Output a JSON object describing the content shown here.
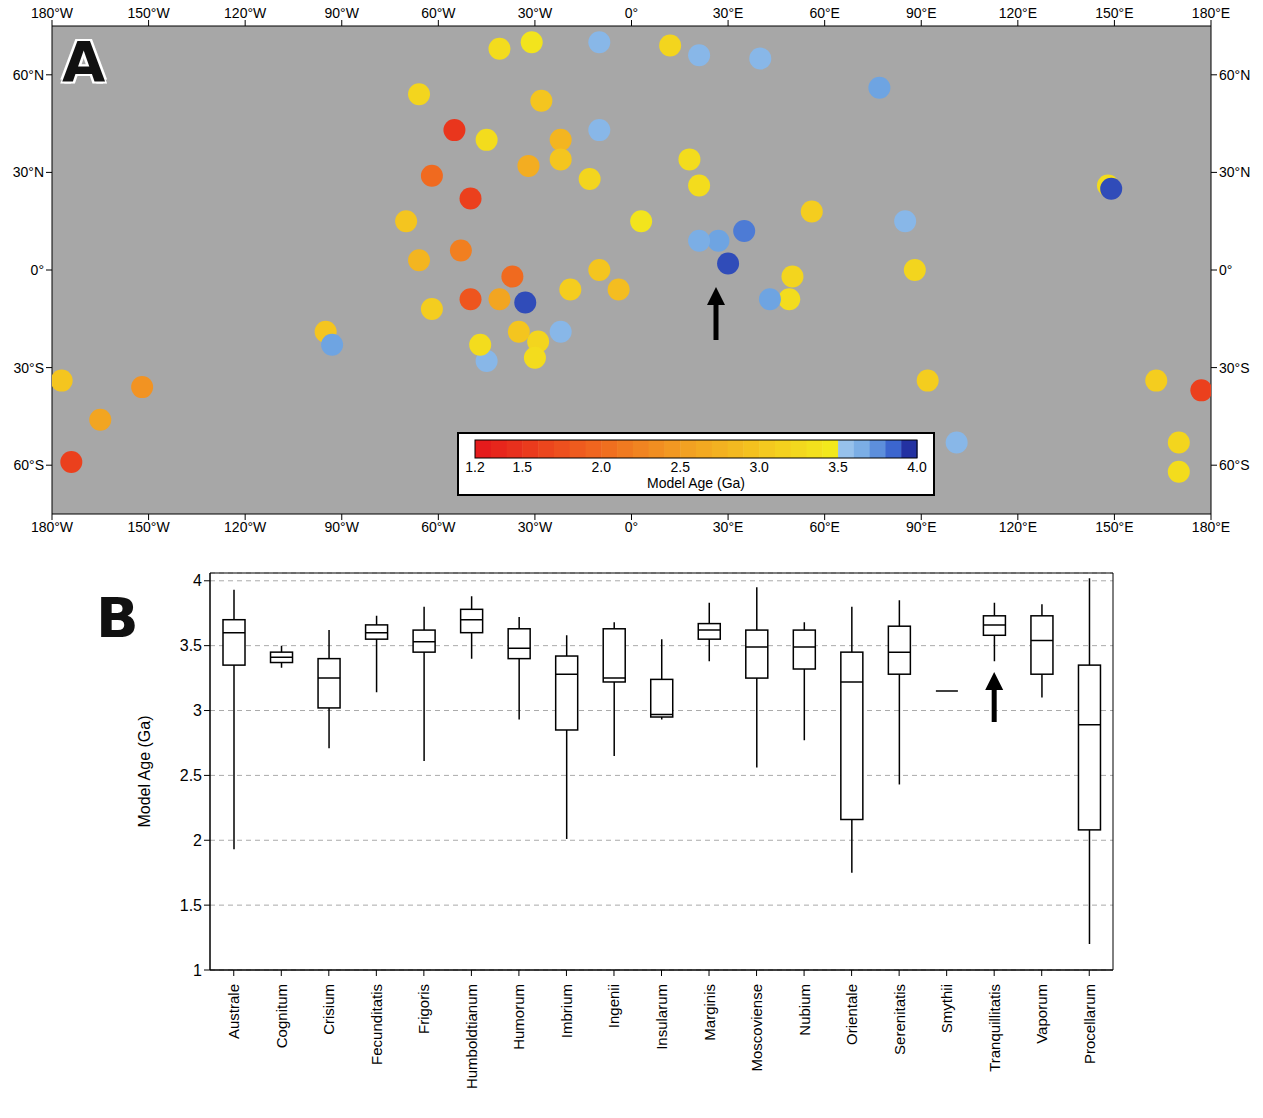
{
  "chart_data": [
    {
      "type": "scatter",
      "panel": "A",
      "xlim": [
        -180,
        180
      ],
      "ylim": [
        -75,
        75
      ],
      "xticks": [
        {
          "value": -180,
          "label": "180°W"
        },
        {
          "value": -150,
          "label": "150°W"
        },
        {
          "value": -120,
          "label": "120°W"
        },
        {
          "value": -90,
          "label": "90°W"
        },
        {
          "value": -60,
          "label": "60°W"
        },
        {
          "value": -30,
          "label": "30°W"
        },
        {
          "value": 0,
          "label": "0°"
        },
        {
          "value": 30,
          "label": "30°E"
        },
        {
          "value": 60,
          "label": "60°E"
        },
        {
          "value": 90,
          "label": "90°E"
        },
        {
          "value": 120,
          "label": "120°E"
        },
        {
          "value": 150,
          "label": "150°E"
        },
        {
          "value": 180,
          "label": "180°E"
        }
      ],
      "yticks": [
        {
          "value": -60,
          "label": "60°S"
        },
        {
          "value": -30,
          "label": "30°S"
        },
        {
          "value": 0,
          "label": "0°"
        },
        {
          "value": 30,
          "label": "30°N"
        },
        {
          "value": 60,
          "label": "60°N"
        }
      ],
      "grid": false,
      "x": [
        -55,
        -62,
        -50,
        -66,
        -70,
        -66,
        -53,
        -50,
        -62,
        -41,
        -37,
        -13,
        -22,
        -28,
        -10,
        -41,
        -31,
        -10,
        12,
        21,
        40,
        21,
        18,
        27,
        35,
        21,
        30,
        56,
        50,
        49,
        43,
        -22,
        -29,
        -35,
        -10,
        -4,
        3,
        -95,
        -93,
        88,
        77,
        85,
        148,
        149,
        163,
        170,
        177,
        101,
        92,
        -177,
        -165,
        -174,
        -152,
        -45,
        -47,
        -19,
        -30,
        -22,
        -32,
        -45,
        170,
        -33
      ],
      "y": [
        43,
        29,
        22,
        54,
        15,
        3,
        6,
        -9,
        -12,
        -9,
        -2,
        28,
        40,
        52,
        43,
        68,
        70,
        70,
        69,
        66,
        65,
        26,
        34,
        9,
        12,
        9,
        2,
        18,
        -2,
        -9,
        -9,
        -19,
        -22,
        -19,
        0,
        -6,
        15,
        -19,
        -23,
        0,
        56,
        15,
        26,
        25,
        -34,
        -53,
        -37,
        -53,
        -34,
        -34,
        -46,
        -59,
        -36,
        -28,
        -23,
        -6,
        -27,
        34,
        32,
        40,
        -62,
        -10
      ],
      "values": [
        1.5,
        2.0,
        1.6,
        3.2,
        3.0,
        2.8,
        2.2,
        1.8,
        3.1,
        2.6,
        2.0,
        3.2,
        2.8,
        3.0,
        3.6,
        3.3,
        3.4,
        3.6,
        3.2,
        3.6,
        3.6,
        3.3,
        3.3,
        3.7,
        3.8,
        3.65,
        3.9,
        3.1,
        3.2,
        3.3,
        3.7,
        3.6,
        3.2,
        3.0,
        3.0,
        2.9,
        3.4,
        3.0,
        3.7,
        3.2,
        3.7,
        3.6,
        3.3,
        3.9,
        3.1,
        3.2,
        1.6,
        3.6,
        3.1,
        3.0,
        2.6,
        1.6,
        2.4,
        3.6,
        3.3,
        3.1,
        3.3,
        3.0,
        2.7,
        3.3,
        3.3,
        3.9
      ],
      "colorbar": {
        "range": [
          1.2,
          4.0
        ],
        "ticks": [
          1.2,
          1.5,
          {
            "value": 2,
            "label": "2.0"
          },
          2.5,
          {
            "value": 3,
            "label": "3.0"
          },
          3.5,
          {
            "value": 4,
            "label": "4.0"
          }
        ],
        "label": "Model Age (Ga)"
      }
    },
    {
      "type": "box",
      "panel": "B",
      "categories": [
        "Australe",
        "Cognitum",
        "Crisium",
        "Fecunditatis",
        "Frigoris",
        "Humboldtianum",
        "Humorum",
        "Imbrium",
        "Ingenii",
        "Insularum",
        "Marginis",
        "Moscoviense",
        "Nubium",
        "Orientale",
        "Serenitatis",
        "Smythii",
        "Tranquillitatis",
        "Vaporum",
        "Procellarum"
      ],
      "min": [
        1.93,
        3.33,
        2.71,
        3.14,
        2.61,
        3.4,
        2.93,
        2.01,
        2.65,
        2.93,
        3.38,
        2.56,
        2.77,
        1.75,
        2.43,
        3.15,
        3.38,
        3.1,
        1.2
      ],
      "q1": [
        3.35,
        3.37,
        3.02,
        3.55,
        3.45,
        3.6,
        3.4,
        2.85,
        3.22,
        2.95,
        3.55,
        3.25,
        3.32,
        2.16,
        3.28,
        3.15,
        3.58,
        3.28,
        2.08
      ],
      "median": [
        3.6,
        3.41,
        3.25,
        3.6,
        3.53,
        3.7,
        3.48,
        3.28,
        3.25,
        2.97,
        3.62,
        3.49,
        3.49,
        3.22,
        3.45,
        3.15,
        3.66,
        3.54,
        2.89
      ],
      "q3": [
        3.7,
        3.45,
        3.4,
        3.66,
        3.62,
        3.78,
        3.63,
        3.42,
        3.63,
        3.24,
        3.67,
        3.62,
        3.62,
        3.45,
        3.65,
        3.15,
        3.73,
        3.73,
        3.35
      ],
      "max": [
        3.93,
        3.5,
        3.62,
        3.73,
        3.8,
        3.88,
        3.72,
        3.58,
        3.68,
        3.55,
        3.83,
        3.95,
        3.68,
        3.8,
        3.85,
        3.15,
        3.83,
        3.82,
        4.02
      ],
      "ylabel": "Model Age (Ga)",
      "ylim": [
        1,
        4.06
      ],
      "yticks": [
        1,
        1.5,
        2,
        2.5,
        3,
        3.5,
        4
      ],
      "grid": true
    }
  ]
}
